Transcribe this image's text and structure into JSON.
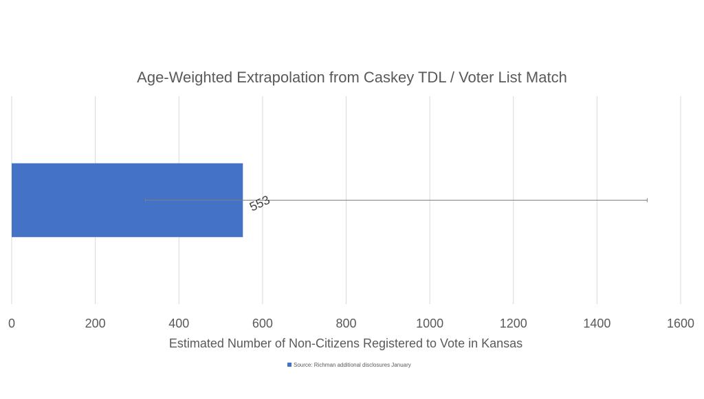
{
  "chart_data": {
    "type": "bar",
    "orientation": "horizontal",
    "title": "Age-Weighted Extrapolation from Caskey TDL / Voter List Match",
    "xlabel": "Estimated Number of Non-Citizens Registered to Vote in Kansas",
    "ylabel": "",
    "xlim": [
      0,
      1600
    ],
    "x_ticks": [
      "0",
      "200",
      "400",
      "600",
      "800",
      "1000",
      "1200",
      "1400",
      "1600"
    ],
    "grid": true,
    "legend_position": "bottom",
    "series": [
      {
        "name": "Source: Richman additional disclosures January",
        "color": "#4472C4",
        "values": [
          553
        ],
        "data_labels": [
          "553"
        ],
        "error_low": [
          320
        ],
        "error_high": [
          1520
        ]
      }
    ]
  }
}
